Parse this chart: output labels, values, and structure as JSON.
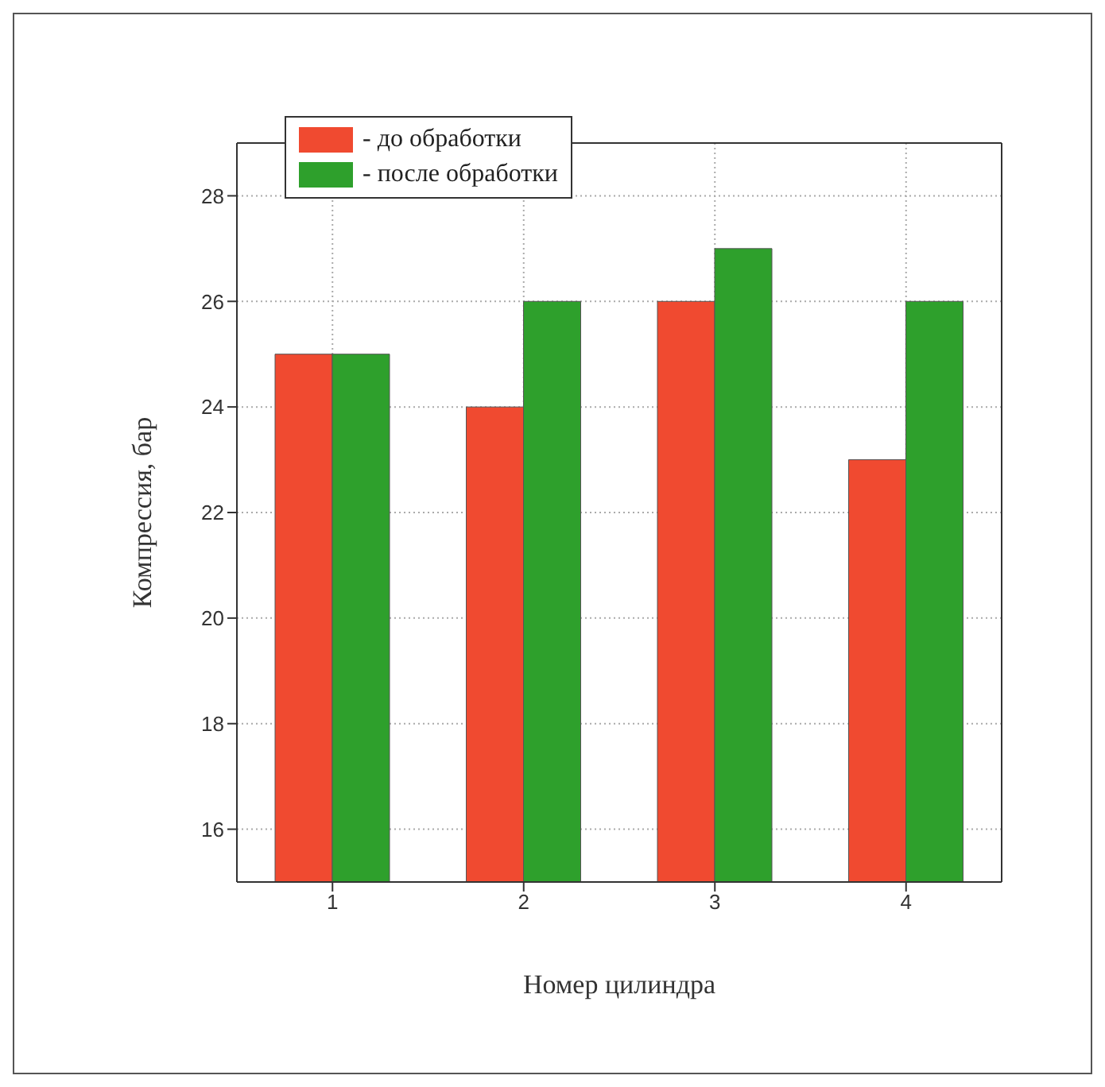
{
  "chart_data": {
    "type": "bar",
    "xlabel": "Номер цилиндра",
    "ylabel": "Компрессия, бар",
    "categories": [
      "1",
      "2",
      "3",
      "4"
    ],
    "series": [
      {
        "name": "- до обработки",
        "color": "#f04a30",
        "values": [
          25,
          24,
          26,
          23
        ]
      },
      {
        "name": "- после обработки",
        "color": "#2ea02c",
        "values": [
          25,
          26,
          27,
          26
        ]
      }
    ],
    "ylim": [
      15,
      29
    ],
    "yticks": [
      16,
      18,
      20,
      22,
      24,
      26,
      28
    ],
    "grid": true,
    "legend": "top left"
  }
}
